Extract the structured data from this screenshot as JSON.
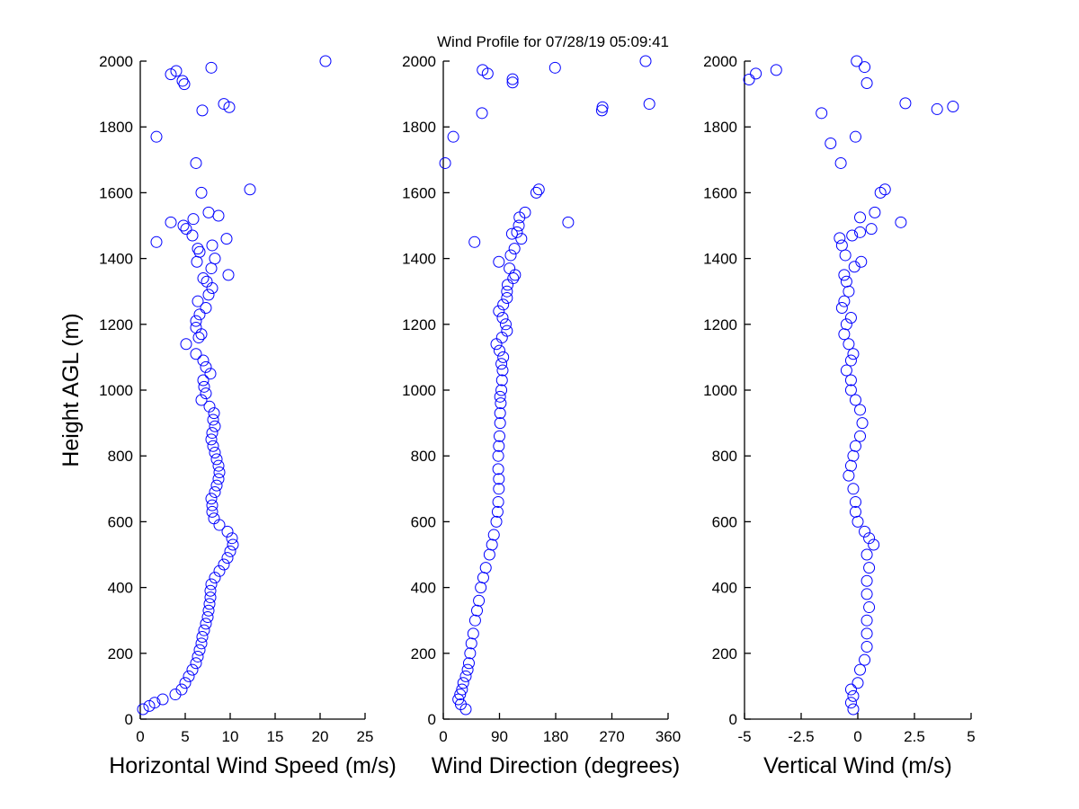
{
  "chart_data": {
    "type": "scatter",
    "title": "Wind Profile for  07/28/19 05:09:41",
    "ylabel": "Height AGL (m)",
    "ylim": [
      0,
      2000
    ],
    "yticks": [
      "0",
      "200",
      "400",
      "600",
      "800",
      "1000",
      "1200",
      "1400",
      "1600",
      "1800",
      "2000"
    ],
    "yticks_values": [
      0,
      200,
      400,
      600,
      800,
      1000,
      1200,
      1400,
      1600,
      1800,
      2000
    ],
    "marker": "open-circle",
    "color": "#0000ff",
    "panels": [
      {
        "name": "horizontal-wind-speed",
        "xlabel": "Horizontal Wind Speed (m/s)",
        "xlim": [
          0,
          25
        ],
        "xticks": [
          "0",
          "5",
          "10",
          "15",
          "20",
          "25"
        ],
        "xticks_values": [
          0,
          5,
          10,
          15,
          20,
          25
        ],
        "points": [
          [
            0.3,
            30
          ],
          [
            1.0,
            40
          ],
          [
            1.6,
            50
          ],
          [
            2.5,
            60
          ],
          [
            3.9,
            75
          ],
          [
            4.6,
            90
          ],
          [
            5.0,
            110
          ],
          [
            5.4,
            130
          ],
          [
            5.8,
            150
          ],
          [
            6.2,
            170
          ],
          [
            6.4,
            190
          ],
          [
            6.6,
            210
          ],
          [
            6.8,
            230
          ],
          [
            6.9,
            250
          ],
          [
            7.1,
            270
          ],
          [
            7.3,
            290
          ],
          [
            7.5,
            310
          ],
          [
            7.6,
            330
          ],
          [
            7.7,
            350
          ],
          [
            7.8,
            370
          ],
          [
            7.8,
            390
          ],
          [
            7.9,
            410
          ],
          [
            8.3,
            430
          ],
          [
            8.8,
            450
          ],
          [
            9.3,
            470
          ],
          [
            9.7,
            490
          ],
          [
            10.0,
            510
          ],
          [
            10.3,
            530
          ],
          [
            10.2,
            550
          ],
          [
            9.7,
            570
          ],
          [
            8.8,
            590
          ],
          [
            8.2,
            610
          ],
          [
            8.0,
            630
          ],
          [
            8.0,
            650
          ],
          [
            7.9,
            670
          ],
          [
            8.3,
            690
          ],
          [
            8.5,
            710
          ],
          [
            8.7,
            730
          ],
          [
            8.8,
            750
          ],
          [
            8.7,
            770
          ],
          [
            8.5,
            790
          ],
          [
            8.3,
            810
          ],
          [
            8.1,
            830
          ],
          [
            7.9,
            850
          ],
          [
            8.0,
            870
          ],
          [
            8.3,
            890
          ],
          [
            8.1,
            910
          ],
          [
            8.2,
            930
          ],
          [
            7.7,
            950
          ],
          [
            6.8,
            970
          ],
          [
            7.3,
            990
          ],
          [
            7.1,
            1010
          ],
          [
            7.0,
            1030
          ],
          [
            7.8,
            1050
          ],
          [
            7.3,
            1070
          ],
          [
            7.0,
            1090
          ],
          [
            6.2,
            1110
          ],
          [
            5.1,
            1140
          ],
          [
            6.5,
            1160
          ],
          [
            6.8,
            1170
          ],
          [
            6.2,
            1190
          ],
          [
            6.2,
            1210
          ],
          [
            6.6,
            1230
          ],
          [
            7.3,
            1250
          ],
          [
            6.4,
            1270
          ],
          [
            7.6,
            1290
          ],
          [
            8.0,
            1310
          ],
          [
            7.4,
            1330
          ],
          [
            7.0,
            1340
          ],
          [
            9.8,
            1350
          ],
          [
            7.9,
            1370
          ],
          [
            6.3,
            1390
          ],
          [
            8.3,
            1400
          ],
          [
            6.6,
            1420
          ],
          [
            6.4,
            1430
          ],
          [
            8.0,
            1440
          ],
          [
            1.8,
            1450
          ],
          [
            9.6,
            1460
          ],
          [
            5.8,
            1470
          ],
          [
            5.1,
            1490
          ],
          [
            4.8,
            1500
          ],
          [
            3.4,
            1510
          ],
          [
            5.9,
            1520
          ],
          [
            8.7,
            1530
          ],
          [
            7.6,
            1540
          ],
          [
            6.8,
            1600
          ],
          [
            12.2,
            1610
          ],
          [
            6.2,
            1690
          ],
          [
            1.8,
            1770
          ],
          [
            6.9,
            1850
          ],
          [
            9.9,
            1860
          ],
          [
            9.3,
            1870
          ],
          [
            4.9,
            1930
          ],
          [
            4.7,
            1940
          ],
          [
            3.4,
            1960
          ],
          [
            4.0,
            1970
          ],
          [
            7.9,
            1980
          ],
          [
            20.6,
            2000
          ]
        ]
      },
      {
        "name": "wind-direction",
        "xlabel": "Wind Direction (degrees)",
        "xlim": [
          0,
          360
        ],
        "xticks": [
          "0",
          "90",
          "180",
          "270",
          "360"
        ],
        "xticks_values": [
          0,
          90,
          180,
          270,
          360
        ],
        "points": [
          [
            36,
            30
          ],
          [
            28,
            45
          ],
          [
            24,
            60
          ],
          [
            27,
            75
          ],
          [
            30,
            90
          ],
          [
            32,
            110
          ],
          [
            36,
            130
          ],
          [
            39,
            150
          ],
          [
            41,
            170
          ],
          [
            43,
            200
          ],
          [
            45,
            230
          ],
          [
            48,
            260
          ],
          [
            51,
            300
          ],
          [
            54,
            330
          ],
          [
            57,
            360
          ],
          [
            60,
            400
          ],
          [
            64,
            430
          ],
          [
            68,
            460
          ],
          [
            74,
            500
          ],
          [
            78,
            530
          ],
          [
            81,
            560
          ],
          [
            85,
            600
          ],
          [
            87,
            630
          ],
          [
            88,
            660
          ],
          [
            89,
            700
          ],
          [
            89,
            730
          ],
          [
            88,
            760
          ],
          [
            88,
            800
          ],
          [
            89,
            830
          ],
          [
            90,
            860
          ],
          [
            91,
            900
          ],
          [
            91,
            930
          ],
          [
            92,
            960
          ],
          [
            91,
            980
          ],
          [
            93,
            1000
          ],
          [
            94,
            1030
          ],
          [
            95,
            1060
          ],
          [
            93,
            1080
          ],
          [
            96,
            1100
          ],
          [
            90,
            1120
          ],
          [
            85,
            1140
          ],
          [
            94,
            1160
          ],
          [
            102,
            1180
          ],
          [
            100,
            1200
          ],
          [
            95,
            1220
          ],
          [
            89,
            1240
          ],
          [
            96,
            1260
          ],
          [
            102,
            1280
          ],
          [
            102,
            1300
          ],
          [
            103,
            1320
          ],
          [
            112,
            1340
          ],
          [
            115,
            1350
          ],
          [
            106,
            1370
          ],
          [
            89,
            1390
          ],
          [
            108,
            1410
          ],
          [
            114,
            1430
          ],
          [
            50,
            1450
          ],
          [
            125,
            1460
          ],
          [
            110,
            1475
          ],
          [
            118,
            1480
          ],
          [
            121,
            1500
          ],
          [
            200,
            1510
          ],
          [
            122,
            1525
          ],
          [
            131,
            1540
          ],
          [
            149,
            1600
          ],
          [
            153,
            1610
          ],
          [
            3,
            1690
          ],
          [
            16,
            1770
          ],
          [
            62,
            1842
          ],
          [
            254,
            1850
          ],
          [
            255,
            1860
          ],
          [
            330,
            1870
          ],
          [
            111,
            1935
          ],
          [
            111,
            1945
          ],
          [
            71,
            1962
          ],
          [
            63,
            1973
          ],
          [
            179,
            1980
          ],
          [
            324,
            2000
          ]
        ]
      },
      {
        "name": "vertical-wind",
        "xlabel": "Vertical Wind (m/s)",
        "xlim": [
          -5,
          5
        ],
        "xticks": [
          "-5",
          "-2.5",
          "0",
          "2.5",
          "5"
        ],
        "xticks_values": [
          -5,
          -2.5,
          0,
          2.5,
          5
        ],
        "points": [
          [
            -0.2,
            30
          ],
          [
            -0.3,
            50
          ],
          [
            -0.2,
            70
          ],
          [
            -0.3,
            90
          ],
          [
            0.0,
            110
          ],
          [
            0.1,
            150
          ],
          [
            0.3,
            180
          ],
          [
            0.4,
            220
          ],
          [
            0.4,
            260
          ],
          [
            0.4,
            300
          ],
          [
            0.5,
            340
          ],
          [
            0.4,
            380
          ],
          [
            0.4,
            420
          ],
          [
            0.5,
            460
          ],
          [
            0.4,
            500
          ],
          [
            0.7,
            530
          ],
          [
            0.5,
            550
          ],
          [
            0.3,
            570
          ],
          [
            0.0,
            600
          ],
          [
            -0.1,
            630
          ],
          [
            -0.1,
            660
          ],
          [
            -0.2,
            700
          ],
          [
            -0.4,
            740
          ],
          [
            -0.3,
            770
          ],
          [
            -0.2,
            800
          ],
          [
            -0.1,
            830
          ],
          [
            0.1,
            860
          ],
          [
            0.2,
            900
          ],
          [
            0.1,
            940
          ],
          [
            -0.1,
            970
          ],
          [
            -0.3,
            1000
          ],
          [
            -0.3,
            1030
          ],
          [
            -0.5,
            1060
          ],
          [
            -0.3,
            1090
          ],
          [
            -0.2,
            1110
          ],
          [
            -0.4,
            1140
          ],
          [
            -0.6,
            1170
          ],
          [
            -0.5,
            1200
          ],
          [
            -0.3,
            1220
          ],
          [
            -0.7,
            1250
          ],
          [
            -0.6,
            1270
          ],
          [
            -0.4,
            1300
          ],
          [
            -0.5,
            1330
          ],
          [
            -0.6,
            1350
          ],
          [
            -0.15,
            1375
          ],
          [
            0.15,
            1390
          ],
          [
            -0.55,
            1410
          ],
          [
            -0.7,
            1440
          ],
          [
            -0.8,
            1462
          ],
          [
            -0.25,
            1470
          ],
          [
            0.1,
            1480
          ],
          [
            0.6,
            1490
          ],
          [
            1.9,
            1510
          ],
          [
            0.1,
            1525
          ],
          [
            0.75,
            1540
          ],
          [
            1.0,
            1600
          ],
          [
            1.2,
            1610
          ],
          [
            -0.75,
            1690
          ],
          [
            -1.2,
            1750
          ],
          [
            -0.1,
            1770
          ],
          [
            -1.6,
            1842
          ],
          [
            3.5,
            1854
          ],
          [
            4.2,
            1862
          ],
          [
            2.1,
            1872
          ],
          [
            0.4,
            1933
          ],
          [
            -4.8,
            1944
          ],
          [
            -4.5,
            1962
          ],
          [
            -3.6,
            1973
          ],
          [
            0.3,
            1982
          ],
          [
            -0.05,
            2000
          ]
        ]
      }
    ]
  }
}
